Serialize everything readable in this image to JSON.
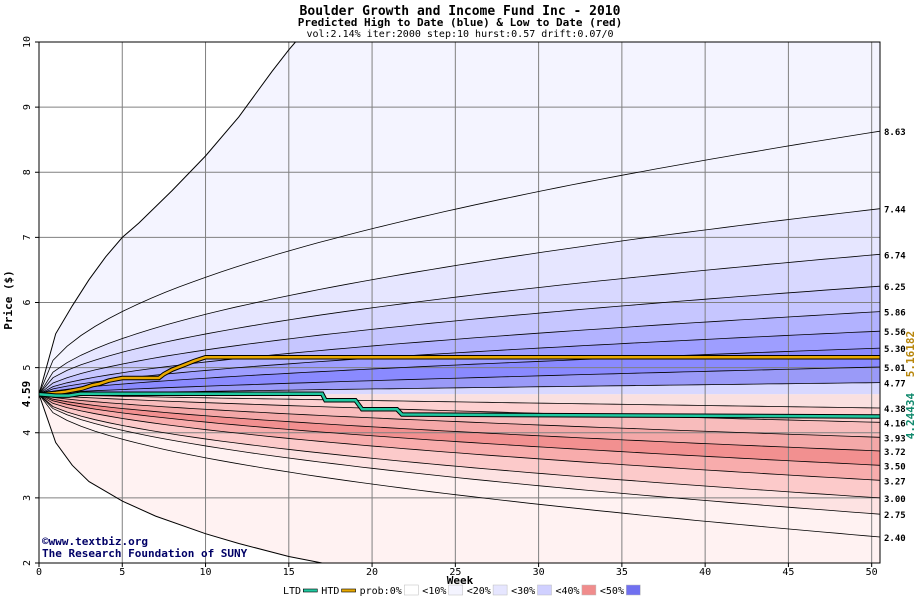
{
  "chart_data": {
    "type": "area",
    "title": "Boulder Growth and Income Fund Inc - 2010",
    "subtitle": "Predicted High to Date (blue) &  Low to Date (red)",
    "params": "vol:2.14% iter:2000 step:10 hurst:0.57 drift:0.07/0",
    "xlabel": "Week",
    "ylabel": "Price ($)",
    "xlim": [
      0,
      50.5
    ],
    "ylim": [
      2,
      10
    ],
    "xticks": [
      0,
      5,
      10,
      15,
      20,
      25,
      30,
      35,
      40,
      45,
      50
    ],
    "yticks": [
      2,
      3,
      4,
      5,
      6,
      7,
      8,
      9,
      10
    ],
    "grid": true,
    "start_price": 4.59,
    "start_price_label": "4.59",
    "upper_band_end_values": [
      8.63,
      7.44,
      6.74,
      6.25,
      5.86,
      5.56,
      5.3,
      5.01,
      4.77
    ],
    "upper_band_end_labels": [
      "8.63",
      "7.44",
      "6.74",
      "6.25",
      "5.86",
      "5.56",
      "5.30",
      "5.01",
      "4.77"
    ],
    "lower_band_end_values": [
      4.38,
      4.16,
      3.93,
      3.72,
      3.5,
      3.27,
      3.0,
      2.75,
      2.4
    ],
    "lower_band_end_labels": [
      "4.38",
      "4.16",
      "3.93",
      "3.72",
      "3.50",
      "3.27",
      "3.00",
      "2.75",
      "2.40"
    ],
    "outer_upper_curve": {
      "x": [
        0,
        1,
        2,
        3,
        4,
        5,
        6,
        8,
        10,
        12,
        14,
        15,
        15.4
      ],
      "y": [
        4.59,
        5.52,
        5.95,
        6.35,
        6.7,
        7.0,
        7.22,
        7.72,
        8.25,
        8.85,
        9.55,
        9.88,
        10.0
      ]
    },
    "outer_lower_curve": {
      "x": [
        0,
        1,
        2,
        3,
        5,
        7,
        10,
        12,
        15,
        17
      ],
      "y": [
        4.59,
        3.85,
        3.5,
        3.25,
        2.95,
        2.72,
        2.45,
        2.3,
        2.1,
        2.0
      ]
    },
    "htd_line": {
      "name": "HTD",
      "color": "#e8a800",
      "end_label": "5.16182",
      "end_value": 5.16182,
      "x": [
        0,
        1,
        1.6,
        2.2,
        2.6,
        3.2,
        3.6,
        4.2,
        5,
        7.2,
        7.5,
        8,
        8.8,
        9.3,
        10,
        50.5
      ],
      "y": [
        4.59,
        4.61,
        4.63,
        4.66,
        4.68,
        4.73,
        4.75,
        4.8,
        4.84,
        4.84,
        4.9,
        4.97,
        5.05,
        5.1,
        5.16,
        5.16
      ]
    },
    "ltd_line": {
      "name": "LTD",
      "color": "#20c8a0",
      "end_label": "4.24434",
      "end_value": 4.24434,
      "x": [
        0,
        1,
        1.8,
        2.5,
        3.2,
        4.5,
        17,
        17.2,
        19,
        19.4,
        21.5,
        21.8,
        50.5
      ],
      "y": [
        4.59,
        4.57,
        4.57,
        4.6,
        4.6,
        4.6,
        4.6,
        4.5,
        4.5,
        4.36,
        4.36,
        4.28,
        4.25
      ]
    },
    "legend": [
      {
        "label": "LTD",
        "kind": "line",
        "color": "#20c8a0"
      },
      {
        "label": "HTD",
        "kind": "line",
        "color": "#e8a800"
      },
      {
        "label": "prob:0%",
        "kind": "swatch",
        "color": "#ffffff"
      },
      {
        "label": "<10%",
        "kind": "swatch",
        "color": "#f4f4ff"
      },
      {
        "label": "<20%",
        "kind": "swatch",
        "color": "#e6e6ff"
      },
      {
        "label": "<30%",
        "kind": "swatch",
        "color": "#d0d0ff"
      },
      {
        "label": "<40%",
        "kind": "swatch",
        "color": "#f08c8c"
      },
      {
        "label": "<50%",
        "kind": "swatch",
        "color": "#7070f0"
      }
    ],
    "legend_position": "bottom",
    "colors": {
      "upper_fills": [
        "#f4f4ff",
        "#e6e6ff",
        "#d8d8ff",
        "#c6c6ff",
        "#b2b2ff",
        "#9e9eff",
        "#8a8aff",
        "#9a9af8",
        "#d8d8ff"
      ],
      "lower_fills": [
        "#fae0e0",
        "#fdd0d0",
        "#f8bcbc",
        "#f4a8a8",
        "#f29090",
        "#f8acac",
        "#fccaca",
        "#fde2e2",
        "#fff2f2"
      ],
      "grid": "#808080",
      "band_line": "#000000"
    }
  },
  "credit": {
    "line1": "©www.textbiz.org",
    "line2": "The Research Foundation of SUNY"
  }
}
